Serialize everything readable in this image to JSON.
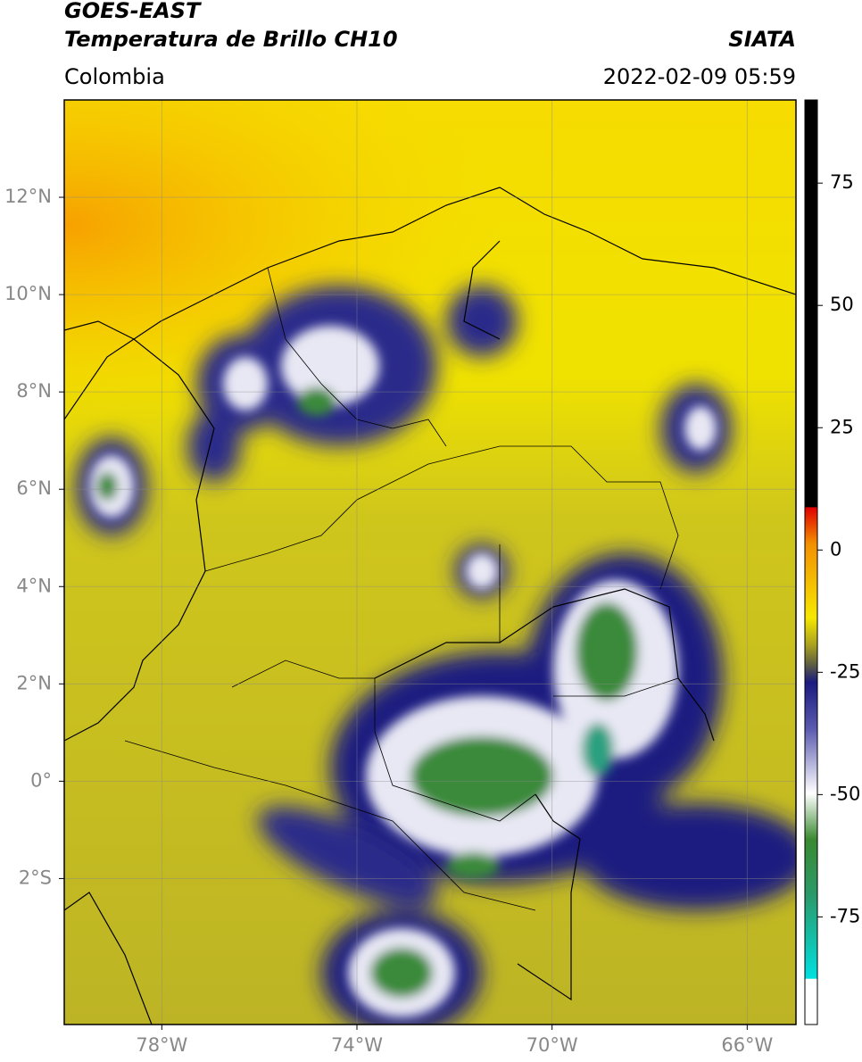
{
  "header": {
    "title": "GOES-EAST",
    "subtitle": "Temperatura de Brillo CH10",
    "source": "SIATA",
    "region": "Colombia",
    "timestamp": "2022-02-09 05:59"
  },
  "map": {
    "xlim": [
      -80,
      -65
    ],
    "ylim": [
      -5,
      14
    ],
    "yticks": [
      {
        "value": 12,
        "label": "12°N"
      },
      {
        "value": 10,
        "label": "10°N"
      },
      {
        "value": 8,
        "label": "8°N"
      },
      {
        "value": 6,
        "label": "6°N"
      },
      {
        "value": 4,
        "label": "4°N"
      },
      {
        "value": 2,
        "label": "2°N"
      },
      {
        "value": 0,
        "label": "0°"
      },
      {
        "value": -2,
        "label": "2°S"
      }
    ],
    "xticks": [
      {
        "value": -78,
        "label": "78°W"
      },
      {
        "value": -74,
        "label": "74°W"
      },
      {
        "value": -70,
        "label": "70°W"
      },
      {
        "value": -66,
        "label": "66°W"
      }
    ]
  },
  "colorbar": {
    "clim": [
      -97,
      92
    ],
    "ticks": [
      75,
      50,
      25,
      0,
      -25,
      -50,
      -75
    ]
  }
}
